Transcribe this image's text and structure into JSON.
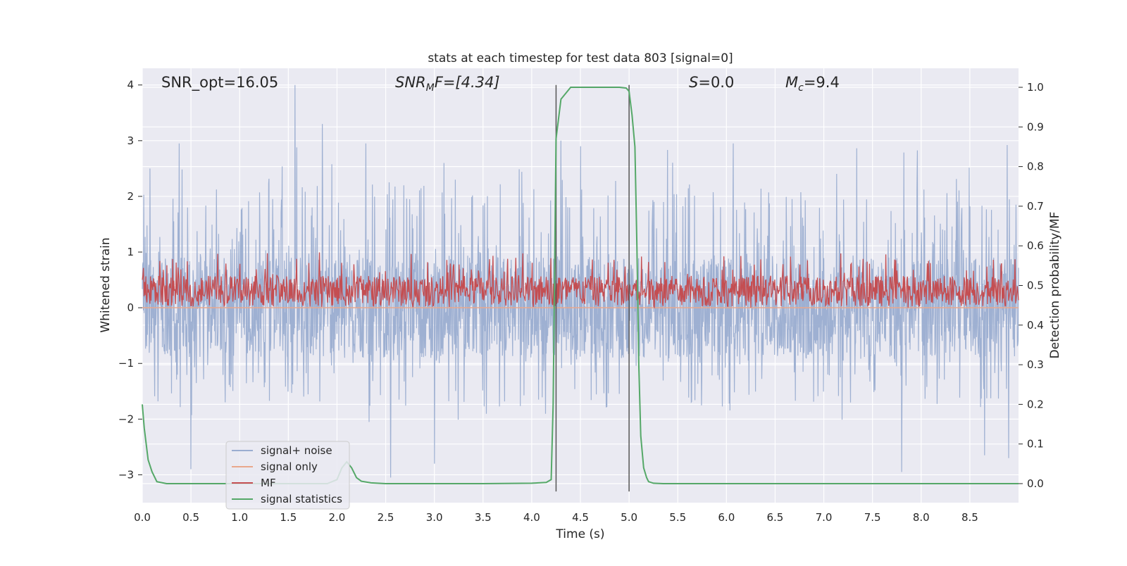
{
  "chart_data": {
    "type": "line",
    "title": "stats at each timestep for test data 803 [signal=0]",
    "xlabel": "Time (s)",
    "ylabel_left": "Whitened strain",
    "ylabel_right": "Detection probability/MF",
    "xlim": [
      0.0,
      9.0
    ],
    "ylim_left": [
      -3.5,
      4.3
    ],
    "ylim_right": [
      -0.048,
      1.048
    ],
    "x_ticks": [
      "0.0",
      "0.5",
      "1.0",
      "1.5",
      "2.0",
      "2.5",
      "3.0",
      "3.5",
      "4.0",
      "4.5",
      "5.0",
      "5.5",
      "6.0",
      "6.5",
      "7.0",
      "7.5",
      "8.0",
      "8.5"
    ],
    "y_ticks_left": [
      "4",
      "3",
      "2",
      "1",
      "0",
      "−1",
      "−2",
      "−3"
    ],
    "y_ticks_right": [
      "1.0",
      "0.9",
      "0.8",
      "0.7",
      "0.6",
      "0.5",
      "0.4",
      "0.3",
      "0.2",
      "0.1",
      "0.0"
    ],
    "grid": true,
    "background": "#eaeaf2",
    "annotations": {
      "snr_opt": "SNR_opt=16.05",
      "snr_mf_main": "SNR",
      "snr_mf_sub": "M",
      "snr_mf_rest": "F=[4.34]",
      "s_main": "S",
      "s_rest": "=0.0",
      "mc_main": "M",
      "mc_sub": "c",
      "mc_rest": "=9.4"
    },
    "vertical_markers": {
      "x": [
        4.25,
        5.0
      ],
      "y_range_left": [
        -3.3,
        4.0
      ],
      "color": "#555555"
    },
    "series": [
      {
        "name": "signal+ noise",
        "axis": "left",
        "color": "#9aadd0",
        "description_values": "noisy whitened strain, roughly within [-3.0, 4.0] around 0",
        "peaks": [
          [
            0.08,
            2.5
          ],
          [
            0.5,
            -2.9
          ],
          [
            1.57,
            4.0
          ],
          [
            1.85,
            3.3
          ],
          [
            2.55,
            2.6
          ],
          [
            2.55,
            -3.05
          ],
          [
            3.0,
            -2.8
          ],
          [
            3.1,
            2.6
          ],
          [
            4.3,
            3.0
          ],
          [
            4.5,
            2.9
          ],
          [
            6.07,
            2.95
          ],
          [
            7.8,
            -2.95
          ],
          [
            8.65,
            -2.65
          ],
          [
            8.9,
            -2.7
          ]
        ]
      },
      {
        "name": "signal only",
        "axis": "left",
        "color": "#e9a78c",
        "x": [
          0.0,
          9.0
        ],
        "y": [
          0.0,
          0.0
        ]
      },
      {
        "name": "MF",
        "axis": "left",
        "color": "#c44e52",
        "description_values": "matched filter output, oscillating roughly within [0.0, 1.0] on the strain axis"
      },
      {
        "name": "signal statistics",
        "axis": "right",
        "color": "#55a868",
        "x": [
          0.0,
          0.02,
          0.06,
          0.1,
          0.15,
          0.25,
          0.4,
          1.0,
          1.5,
          1.9,
          2.0,
          2.05,
          2.1,
          2.15,
          2.2,
          2.25,
          2.35,
          2.5,
          3.0,
          3.5,
          4.0,
          4.15,
          4.2,
          4.22,
          4.25,
          4.3,
          4.4,
          4.5,
          4.8,
          4.9,
          4.97,
          5.0,
          5.03,
          5.06,
          5.08,
          5.1,
          5.12,
          5.15,
          5.18,
          5.2,
          5.25,
          5.35,
          6.0,
          7.0,
          8.0,
          9.0
        ],
        "y": [
          0.2,
          0.14,
          0.06,
          0.03,
          0.005,
          0.0,
          0.0,
          0.0,
          0.0,
          0.0,
          0.01,
          0.04,
          0.055,
          0.04,
          0.015,
          0.006,
          0.002,
          0.0,
          0.0,
          0.0,
          0.001,
          0.003,
          0.01,
          0.2,
          0.87,
          0.97,
          1.0,
          1.0,
          1.0,
          1.0,
          0.998,
          0.99,
          0.93,
          0.85,
          0.6,
          0.3,
          0.12,
          0.04,
          0.015,
          0.005,
          0.001,
          0.0,
          0.0,
          0.0,
          0.0,
          0.0
        ]
      }
    ],
    "legend": {
      "placement": "lower-left",
      "entries": [
        {
          "label": "signal+ noise",
          "color": "#9aadd0"
        },
        {
          "label": "signal only",
          "color": "#e9a78c"
        },
        {
          "label": "MF",
          "color": "#c44e52"
        },
        {
          "label": "signal statistics",
          "color": "#55a868"
        }
      ]
    }
  }
}
